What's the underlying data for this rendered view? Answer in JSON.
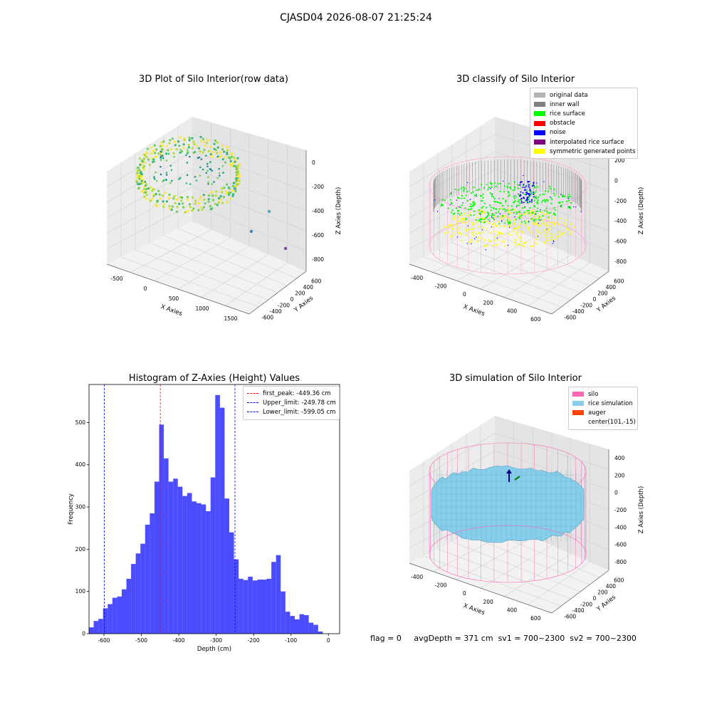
{
  "suptitle": "CJASD04 2026-08-07 21:25:24",
  "panels": {
    "raw": {
      "title": "3D Plot of Silo Interior(row data)",
      "xlabel": "X Axies",
      "ylabel": "Y Axies",
      "zlabel": "Z Axies (Depth)",
      "x_ticks": [
        "-500",
        "0",
        "500",
        "1000",
        "1500"
      ],
      "y_ticks": [
        "600",
        "400",
        "200",
        "0",
        "-200",
        "-400",
        "-600"
      ],
      "z_ticks": [
        "0",
        "-200",
        "-400",
        "-600",
        "-800"
      ]
    },
    "classify": {
      "title": "3D classify of Silo Interior",
      "xlabel": "X Axies",
      "ylabel": "Y Axies",
      "zlabel": "Z Axies (Depth)",
      "x_ticks": [
        "-400",
        "-200",
        "0",
        "200",
        "400",
        "600"
      ],
      "y_ticks": [
        "600",
        "400",
        "200",
        "0",
        "-200",
        "-400",
        "-600"
      ],
      "z_ticks": [
        "200",
        "0",
        "-200",
        "-400",
        "-600",
        "-800"
      ],
      "legend": [
        {
          "label": "original data",
          "color": "#b3b3b3"
        },
        {
          "label": "inner wall",
          "color": "#808080"
        },
        {
          "label": "rice surface",
          "color": "#00ff00"
        },
        {
          "label": "obstacle",
          "color": "#ff0000"
        },
        {
          "label": "noise",
          "color": "#0000ff"
        },
        {
          "label": "interpolated rice surface",
          "color": "#800080"
        },
        {
          "label": "symmetric generated points",
          "color": "#ffff00"
        }
      ]
    },
    "simulation": {
      "title": "3D simulation of Silo Interior",
      "xlabel": "X Axies",
      "ylabel": "Y Axies",
      "zlabel": "Z Axies (Depth)",
      "x_ticks": [
        "-400",
        "-200",
        "0",
        "200",
        "400",
        "600"
      ],
      "y_ticks": [
        "600",
        "400",
        "200",
        "0",
        "-200",
        "-400",
        "-600"
      ],
      "z_ticks": [
        "400",
        "200",
        "0",
        "-200",
        "-400",
        "-600",
        "-800"
      ],
      "legend": [
        {
          "label": "silo",
          "color": "#ff69b4"
        },
        {
          "label": "rice simulation",
          "color": "#87ceeb"
        },
        {
          "label": "auger",
          "color": "#ff4500"
        },
        {
          "label": "center(101,-15)",
          "color": ""
        }
      ]
    }
  },
  "chart_data": {
    "type": "bar",
    "title": "Histogram of Z-Axies (Height) Values",
    "xlabel": "Depth (cm)",
    "ylabel": "Frequency",
    "xlim": [
      -640,
      30
    ],
    "ylim": [
      0,
      590
    ],
    "x_ticks": [
      -600,
      -500,
      -400,
      -300,
      -200,
      -100,
      0
    ],
    "y_ticks": [
      0,
      100,
      200,
      300,
      400,
      500
    ],
    "bar_color": "#0000ff",
    "bin_width": 12.5,
    "bin_starts": [
      -640,
      -627.5,
      -615,
      -602.5,
      -590,
      -577.5,
      -565,
      -552.5,
      -540,
      -527.5,
      -515,
      -502.5,
      -490,
      -477.5,
      -465,
      -452.5,
      -440,
      -427.5,
      -415,
      -402.5,
      -390,
      -377.5,
      -365,
      -352.5,
      -340,
      -327.5,
      -315,
      -302.5,
      -290,
      -277.5,
      -265,
      -252.5,
      -240,
      -227.5,
      -215,
      -202.5,
      -190,
      -177.5,
      -165,
      -152.5,
      -140,
      -127.5,
      -115,
      -102.5,
      -90,
      -77.5,
      -65,
      -52.5,
      -40,
      -27.5,
      -15
    ],
    "values": [
      15,
      30,
      35,
      60,
      70,
      85,
      88,
      105,
      130,
      165,
      190,
      213,
      258,
      285,
      360,
      495,
      415,
      360,
      367,
      348,
      326,
      333,
      313,
      309,
      306,
      290,
      370,
      565,
      535,
      320,
      240,
      176,
      130,
      127,
      135,
      126,
      128,
      128,
      130,
      170,
      186,
      100,
      52,
      42,
      34,
      46,
      44,
      26,
      21,
      5,
      0
    ],
    "lines": [
      {
        "label": "first_peak: -449.36 cm",
        "x": -449.36,
        "color": "#ff0000"
      },
      {
        "label": "Upper_limit: -249.78 cm",
        "x": -249.78,
        "color": "#0000ff"
      },
      {
        "label": "Lower_limit: -599.05 cm",
        "x": -599.05,
        "color": "#0000ff"
      }
    ],
    "legend_position": "upper right"
  },
  "footer": {
    "flag": "flag = 0",
    "avg": "avgDepth = 371 cm",
    "sv1": "sv1 = 700~2300",
    "sv2": "sv2 = 700~2300"
  }
}
